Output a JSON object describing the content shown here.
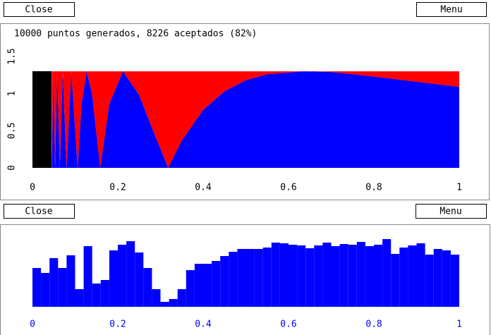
{
  "buttons": {
    "top_close": "Close",
    "top_menu": "Menu",
    "bottom_close": "Close",
    "bottom_menu": "Menu"
  },
  "chart_data": [
    {
      "type": "area",
      "title": "10000 puntos generados, 8226 aceptados (82%)",
      "x": [
        0.045,
        0.049,
        0.053,
        0.058,
        0.064,
        0.071,
        0.08,
        0.091,
        0.106,
        0.115,
        0.127,
        0.14,
        0.159,
        0.18,
        0.212,
        0.25,
        0.28,
        0.318,
        0.35,
        0.4,
        0.45,
        0.5,
        0.55,
        0.637,
        0.7,
        0.8,
        0.9,
        1.0
      ],
      "series": [
        {
          "color": "#0000ff",
          "values": [
            0,
            1.3,
            0,
            1.3,
            0,
            1.3,
            0,
            1.3,
            0,
            0.86,
            1.3,
            0.98,
            0,
            0.86,
            1.3,
            0.98,
            0.54,
            0,
            0.37,
            0.78,
            1.03,
            1.18,
            1.26,
            1.3,
            1.29,
            1.23,
            1.16,
            1.09
          ]
        },
        {
          "color": "#ff0000",
          "values": [
            1.3,
            0,
            1.3,
            0,
            1.3,
            0,
            1.3,
            0,
            1.3,
            0.44,
            0,
            0.32,
            1.3,
            0.44,
            0,
            0.32,
            0.76,
            1.3,
            0.93,
            0.52,
            0.27,
            0.12,
            0.04,
            0,
            0.01,
            0.07,
            0.14,
            0.21
          ]
        }
      ],
      "xlim": [
        0,
        1
      ],
      "xticks": [
        0,
        0.2,
        0.4,
        0.6,
        0.8,
        1
      ],
      "ylim": [
        0,
        1.5
      ],
      "yticks": [
        0,
        0.5,
        1,
        1.5
      ],
      "tick_color": "#000000"
    },
    {
      "type": "histogram",
      "bins": [
        0,
        0.02,
        0.04,
        0.06,
        0.08,
        0.1,
        0.12,
        0.14,
        0.16,
        0.18,
        0.2,
        0.22,
        0.24,
        0.26,
        0.28,
        0.3,
        0.32,
        0.34,
        0.36,
        0.38,
        0.4,
        0.42,
        0.44,
        0.46,
        0.48,
        0.5,
        0.52,
        0.54,
        0.56,
        0.58,
        0.6,
        0.62,
        0.64,
        0.66,
        0.68,
        0.7,
        0.72,
        0.74,
        0.76,
        0.78,
        0.8,
        0.82,
        0.84,
        0.86,
        0.88,
        0.9,
        0.92,
        0.94,
        0.96,
        0.98,
        1
      ],
      "values": [
        55,
        48,
        69,
        55,
        73,
        25,
        86,
        33,
        38,
        80,
        88,
        93,
        77,
        55,
        25,
        7,
        11,
        25,
        52,
        61,
        61,
        65,
        72,
        78,
        82,
        82,
        82,
        84,
        91,
        90,
        88,
        87,
        83,
        87,
        91,
        86,
        89,
        88,
        92,
        86,
        88,
        96,
        75,
        84,
        87,
        90,
        74,
        82,
        80,
        74
      ],
      "color": "#0000ff",
      "xlim": [
        0,
        1
      ],
      "xticks": [
        0,
        0.2,
        0.4,
        0.6,
        0.8,
        1
      ],
      "ylim": [
        0,
        117
      ],
      "tick_color": "#0000ff"
    }
  ]
}
